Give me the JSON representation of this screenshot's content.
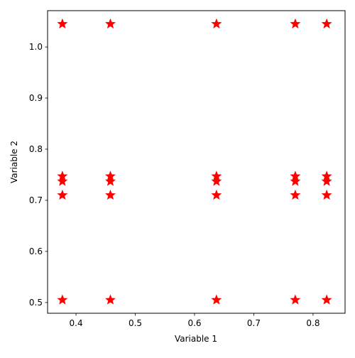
{
  "chart_data": {
    "type": "scatter",
    "xlabel": "Variable 1",
    "ylabel": "Variable 2",
    "x": [
      0.377,
      0.458,
      0.637,
      0.77,
      0.823,
      0.377,
      0.458,
      0.637,
      0.77,
      0.823,
      0.377,
      0.458,
      0.637,
      0.77,
      0.823,
      0.377,
      0.458,
      0.637,
      0.77,
      0.823,
      0.377,
      0.458,
      0.637,
      0.77,
      0.823
    ],
    "y": [
      1.045,
      1.045,
      1.045,
      1.045,
      1.045,
      0.747,
      0.747,
      0.747,
      0.747,
      0.747,
      0.737,
      0.737,
      0.737,
      0.737,
      0.737,
      0.71,
      0.71,
      0.71,
      0.71,
      0.71,
      0.505,
      0.505,
      0.505,
      0.505,
      0.505
    ],
    "color": "#ff0000",
    "marker": "star",
    "xlim": [
      0.352,
      0.854
    ],
    "ylim": [
      0.479,
      1.071
    ],
    "xticks": [
      0.4,
      0.5,
      0.6,
      0.7,
      0.8
    ],
    "yticks": [
      0.5,
      0.6,
      0.7,
      0.8,
      0.9,
      {
        "value": 1.0,
        "label": "1.0"
      }
    ],
    "grid": false
  }
}
